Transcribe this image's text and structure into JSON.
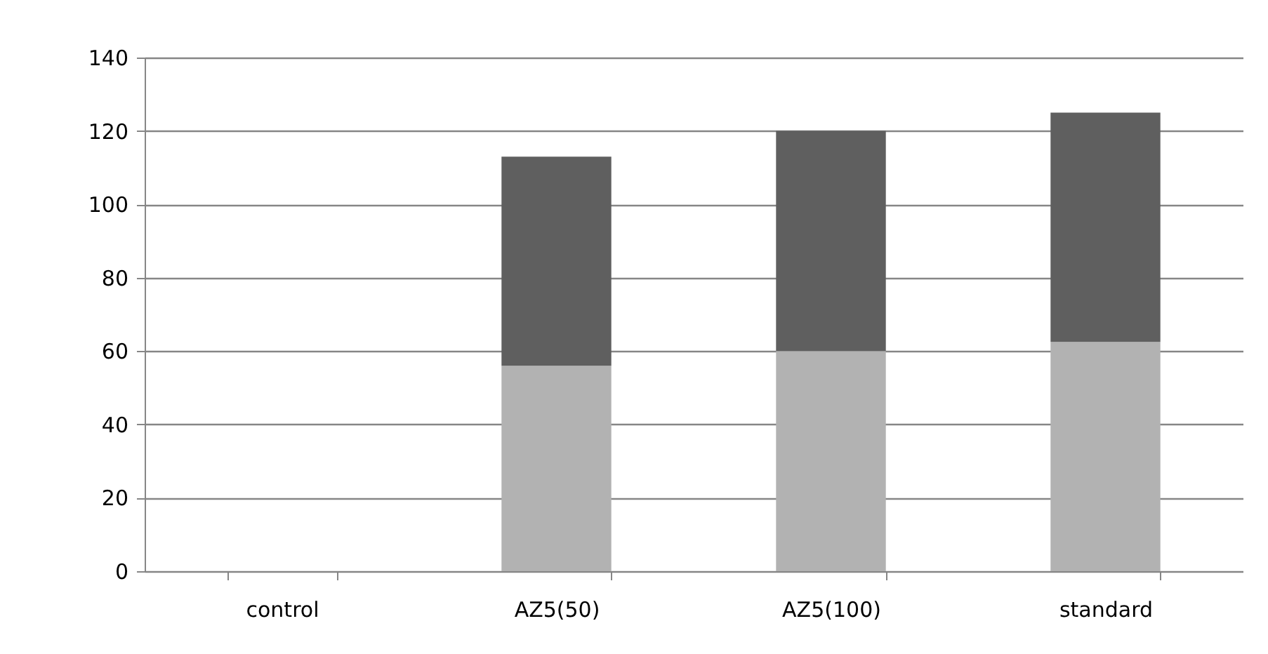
{
  "chart_data": {
    "type": "bar",
    "stacked": true,
    "categories": [
      "control",
      "AZ5(50)",
      "AZ5(100)",
      "standard"
    ],
    "series": [
      {
        "color": "#b2b2b2",
        "values": [
          0,
          56,
          60,
          62.5
        ]
      },
      {
        "color": "#5f5f5f",
        "values": [
          0,
          57,
          60,
          62.5
        ]
      }
    ],
    "ylim": [
      0,
      140
    ],
    "yticks": [
      0,
      20,
      40,
      60,
      80,
      100,
      120,
      140
    ],
    "grid": "y",
    "legend": false
  }
}
